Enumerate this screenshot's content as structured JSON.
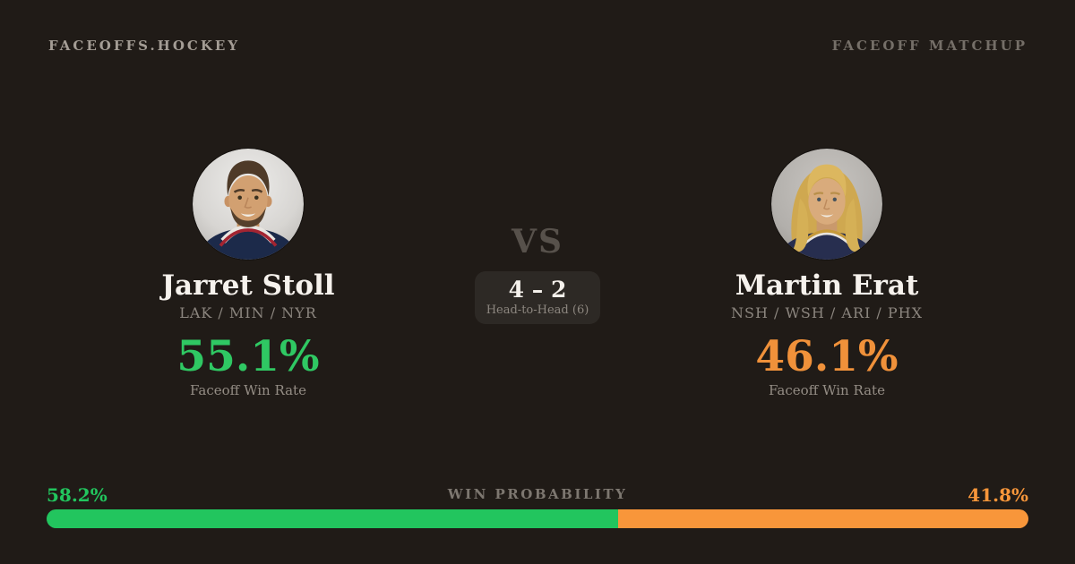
{
  "header": {
    "brand": "FACEOFFS.HOCKEY",
    "page_label": "FACEOFF MATCHUP"
  },
  "players": {
    "left": {
      "name": "Jarret Stoll",
      "teams": "LAK / MIN / NYR",
      "faceoff_win_rate": "55.1%",
      "stat_label": "Faceoff Win Rate",
      "accent_color": "#2fc863",
      "avatar": "jarret-stoll-headshot"
    },
    "right": {
      "name": "Martin Erat",
      "teams": "NSH / WSH / ARI / PHX",
      "faceoff_win_rate": "46.1%",
      "stat_label": "Faceoff Win Rate",
      "accent_color": "#f0913a",
      "avatar": "martin-erat-headshot"
    }
  },
  "matchup": {
    "vs_label": "VS",
    "head_to_head": {
      "score": "4 – 2",
      "label": "Head-to-Head (6)"
    }
  },
  "win_probability": {
    "label": "WIN PROBABILITY",
    "left": {
      "text": "58.2%",
      "value": 58.2,
      "color": "#22c55e"
    },
    "right": {
      "text": "41.8%",
      "value": 41.8,
      "color": "#f8963a"
    }
  },
  "theme": {
    "background": "#201b17",
    "card_background": "#2d2925",
    "text_primary": "#f6f2ed",
    "text_muted": "#8c867f"
  }
}
